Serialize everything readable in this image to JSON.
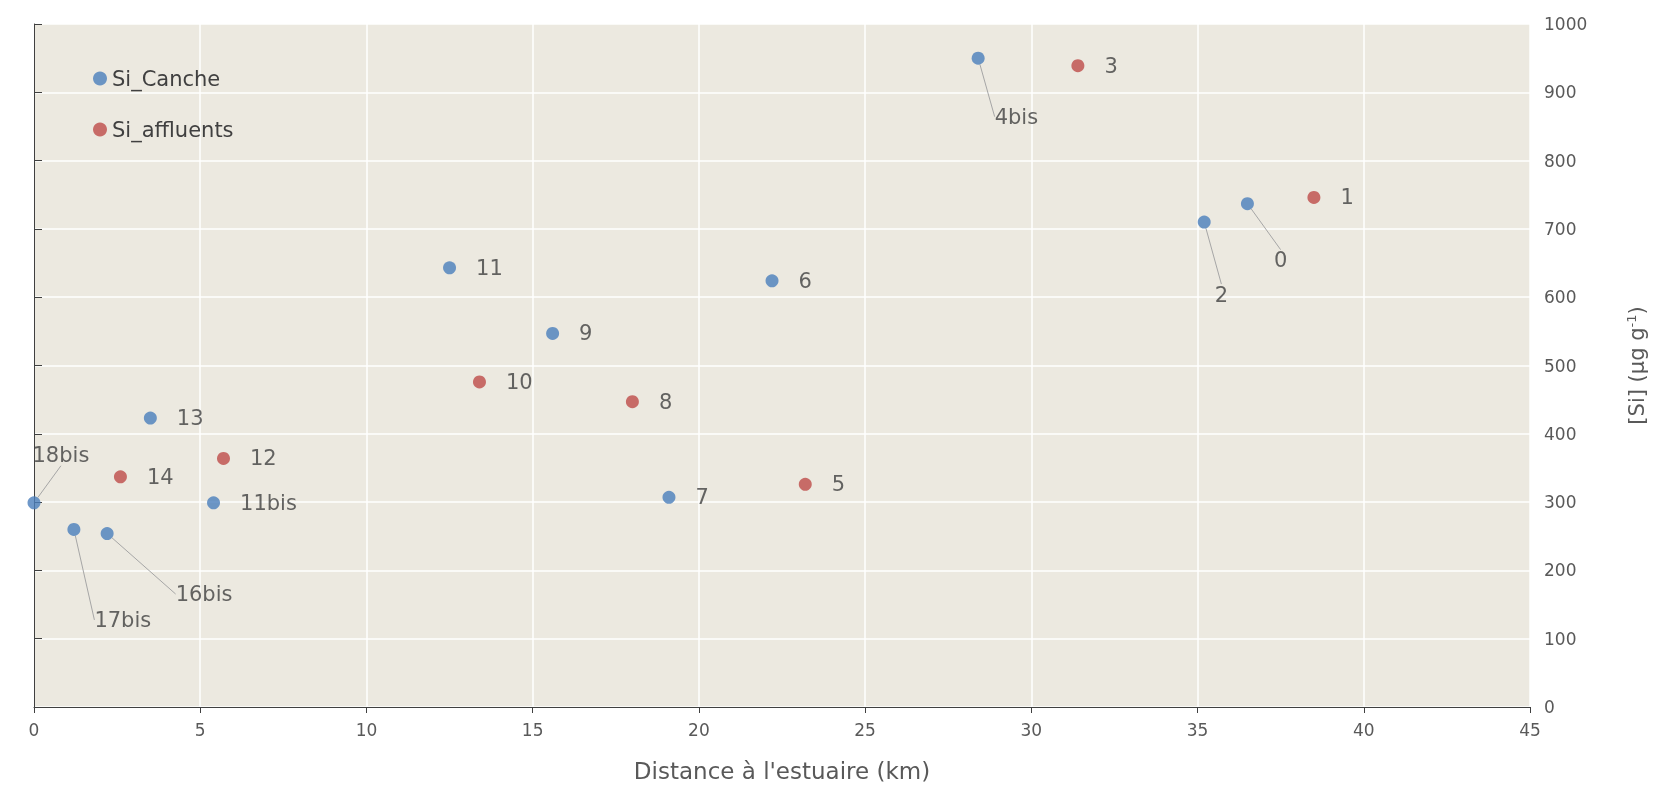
{
  "chart_data": {
    "type": "scatter",
    "xlabel": "Distance à l'estuaire (km)",
    "ylabel": "[Si] (µg g$^{-1}$)",
    "xlim": [
      0,
      45
    ],
    "xticks": [
      0,
      5,
      10,
      15,
      20,
      25,
      30,
      35,
      40,
      45
    ],
    "ylim": [
      0,
      1000
    ],
    "yticks": [
      0,
      100,
      200,
      300,
      400,
      500,
      600,
      700,
      800,
      900,
      1000
    ],
    "grid": true,
    "legend": "top left",
    "marker": "circle",
    "series": [
      {
        "name": "Si_Canche",
        "color": "#4a7ebb",
        "x": [
          28.4,
          36.5,
          35.2,
          12.5,
          22.2,
          15.6,
          3.5,
          5.4,
          19.1,
          0,
          1.2,
          2.2
        ],
        "values": [
          950,
          737,
          710,
          643,
          624,
          547,
          423,
          299,
          307,
          299,
          260,
          254
        ]
      },
      {
        "name": "Si_affluents",
        "color": "#be4b48",
        "x": [
          31.4,
          38.5,
          13.4,
          18,
          5.7,
          2.6,
          23.2
        ],
        "values": [
          939,
          746,
          476,
          447,
          364,
          337,
          326
        ]
      }
    ],
    "annotations": [
      {
        "text": "4bis",
        "x": 28.4,
        "y": 950
      },
      {
        "text": "0",
        "x": 36.5,
        "y": 737
      },
      {
        "text": "2",
        "x": 35.2,
        "y": 710
      },
      {
        "text": "11",
        "x": 12.5,
        "y": 643
      },
      {
        "text": "6",
        "x": 22.2,
        "y": 624
      },
      {
        "text": "9",
        "x": 15.6,
        "y": 547
      },
      {
        "text": "13",
        "x": 3.5,
        "y": 423
      },
      {
        "text": "11bis",
        "x": 5.4,
        "y": 299
      },
      {
        "text": "7",
        "x": 19.1,
        "y": 307
      },
      {
        "text": "18bis",
        "x": 0,
        "y": 299
      },
      {
        "text": "17bis",
        "x": 1.2,
        "y": 260
      },
      {
        "text": "16bis",
        "x": 2.2,
        "y": 254
      },
      {
        "text": "3",
        "x": 31.4,
        "y": 939
      },
      {
        "text": "1",
        "x": 38.5,
        "y": 746
      },
      {
        "text": "10",
        "x": 13.4,
        "y": 476
      },
      {
        "text": "8",
        "x": 18,
        "y": 447
      },
      {
        "text": "12",
        "x": 5.7,
        "y": 364
      },
      {
        "text": "14",
        "x": 2.6,
        "y": 337
      },
      {
        "text": "5",
        "x": 23.2,
        "y": 326
      }
    ]
  }
}
